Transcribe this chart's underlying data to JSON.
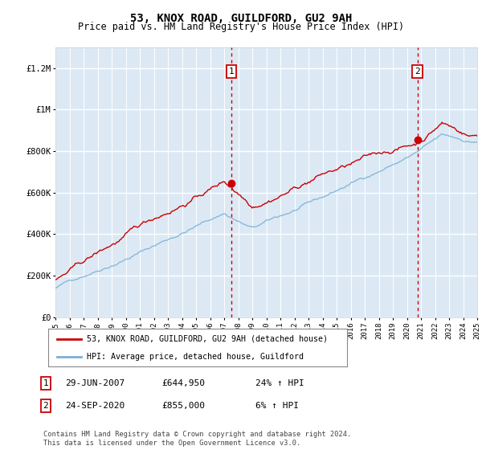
{
  "title": "53, KNOX ROAD, GUILDFORD, GU2 9AH",
  "subtitle": "Price paid vs. HM Land Registry's House Price Index (HPI)",
  "ylim": [
    0,
    1300000
  ],
  "yticks": [
    0,
    200000,
    400000,
    600000,
    800000,
    1000000,
    1200000
  ],
  "ytick_labels": [
    "£0",
    "£200K",
    "£400K",
    "£600K",
    "£800K",
    "£1M",
    "£1.2M"
  ],
  "bg_color": "#dce9f5",
  "grid_color": "#ffffff",
  "red_line_color": "#cc0000",
  "blue_line_color": "#7ab0d4",
  "vline_color": "#cc0000",
  "legend1": "53, KNOX ROAD, GUILDFORD, GU2 9AH (detached house)",
  "legend2": "HPI: Average price, detached house, Guildford",
  "ann1_date": "29-JUN-2007",
  "ann1_price": "£644,950",
  "ann1_hpi": "24% ↑ HPI",
  "ann2_date": "24-SEP-2020",
  "ann2_price": "£855,000",
  "ann2_hpi": "6% ↑ HPI",
  "footer": "Contains HM Land Registry data © Crown copyright and database right 2024.\nThis data is licensed under the Open Government Licence v3.0.",
  "x_start_year": 1995,
  "x_end_year": 2025,
  "sale1_year": 2007.5,
  "sale1_price": 644950,
  "sale2_year": 2020.75,
  "sale2_price": 855000
}
